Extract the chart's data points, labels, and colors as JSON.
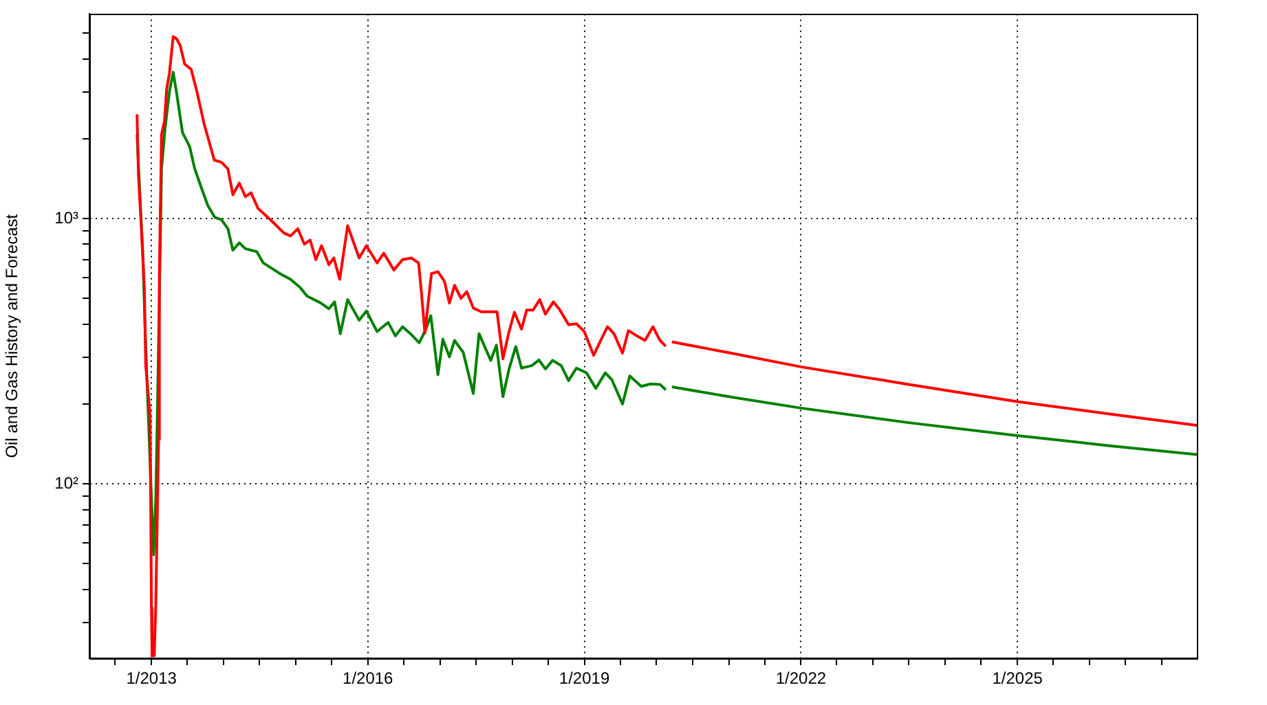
{
  "chart_data": {
    "type": "line",
    "ylabel": "Oil and Gas History and Forecast",
    "log": true,
    "grid": true,
    "marker": "none",
    "xlim": [
      "2012-02-22",
      "2027-06-28"
    ],
    "ylim": [
      22,
      5900
    ],
    "xticks": [
      {
        "value": "2012-07",
        "label": null
      },
      {
        "value": "2013-01",
        "label": "1/2013"
      },
      {
        "value": "2013-07",
        "label": null
      },
      {
        "value": "2014-01",
        "label": null
      },
      {
        "value": "2014-07",
        "label": null
      },
      {
        "value": "2015-01",
        "label": null
      },
      {
        "value": "2015-07",
        "label": null
      },
      {
        "value": "2016-01",
        "label": "1/2016"
      },
      {
        "value": "2016-07",
        "label": null
      },
      {
        "value": "2017-01",
        "label": null
      },
      {
        "value": "2017-07",
        "label": null
      },
      {
        "value": "2018-01",
        "label": null
      },
      {
        "value": "2018-07",
        "label": null
      },
      {
        "value": "2019-01",
        "label": "1/2019"
      },
      {
        "value": "2019-07",
        "label": null
      },
      {
        "value": "2020-01",
        "label": null
      },
      {
        "value": "2020-07",
        "label": null
      },
      {
        "value": "2021-01",
        "label": null
      },
      {
        "value": "2021-07",
        "label": null
      },
      {
        "value": "2022-01",
        "label": "1/2022"
      },
      {
        "value": "2022-07",
        "label": null
      },
      {
        "value": "2023-01",
        "label": null
      },
      {
        "value": "2023-07",
        "label": null
      },
      {
        "value": "2024-01",
        "label": null
      },
      {
        "value": "2024-07",
        "label": null
      },
      {
        "value": "2025-01",
        "label": "1/2025"
      },
      {
        "value": "2025-07",
        "label": null
      },
      {
        "value": "2026-01",
        "label": null
      },
      {
        "value": "2026-07",
        "label": null
      },
      {
        "value": "2027-01",
        "label": null
      }
    ],
    "yticks": [
      {
        "value": 30,
        "label": null
      },
      {
        "value": 40,
        "label": null
      },
      {
        "value": 50,
        "label": null
      },
      {
        "value": 60,
        "label": null
      },
      {
        "value": 70,
        "label": null
      },
      {
        "value": 80,
        "label": null
      },
      {
        "value": 90,
        "label": null
      },
      {
        "value": 100,
        "label": "10²"
      },
      {
        "value": 200,
        "label": null
      },
      {
        "value": 300,
        "label": null
      },
      {
        "value": 400,
        "label": null
      },
      {
        "value": 500,
        "label": null
      },
      {
        "value": 600,
        "label": null
      },
      {
        "value": 700,
        "label": null
      },
      {
        "value": 800,
        "label": null
      },
      {
        "value": 900,
        "label": null
      },
      {
        "value": 1000,
        "label": "10³"
      },
      {
        "value": 2000,
        "label": null
      },
      {
        "value": 3000,
        "label": null
      },
      {
        "value": 4000,
        "label": null
      },
      {
        "value": 5000,
        "label": null
      }
    ],
    "series": [
      {
        "color": "#ff0000",
        "x": [
          "2012-10-20",
          "2012-10-27",
          "2012-11-11",
          "2012-11-26",
          "2012-12-03",
          "2012-12-25",
          "2013-01-01",
          "2013-01-04",
          "2013-01-15",
          "2013-01-23",
          "2013-02-06",
          "2013-02-10",
          "2013-02-21",
          "2013-03-08",
          "2013-03-19",
          "2013-04-02",
          "2013-04-21",
          "2013-05-09",
          "2013-05-27",
          "2013-06-18",
          "2013-07-21",
          "2013-08-19",
          "2013-09-24",
          "2013-11-15",
          "2013-12-21",
          "2014-01-23",
          "2014-02-17",
          "2014-03-22",
          "2014-04-21",
          "2014-05-20",
          "2014-06-25",
          "2014-08-26",
          "2014-11-04",
          "2014-12-06",
          "2015-01-12",
          "2015-02-14",
          "2015-03-15",
          "2015-04-13",
          "2015-05-12",
          "2015-06-18",
          "2015-07-13",
          "2015-08-12",
          "2015-09-21",
          "2015-11-18",
          "2015-12-25",
          "2016-02-17",
          "2016-03-22",
          "2016-05-12",
          "2016-06-25",
          "2016-08-08",
          "2016-09-14",
          "2016-09-28",
          "2016-10-16",
          "2016-10-31",
          "2016-11-18",
          "2016-12-21",
          "2017-01-23",
          "2017-02-17",
          "2017-03-15",
          "2017-04-17",
          "2017-05-16",
          "2017-06-18",
          "2017-07-28",
          "2017-10-16",
          "2017-11-15",
          "2017-12-14",
          "2018-01-12",
          "2018-02-17",
          "2018-03-15",
          "2018-04-17",
          "2018-05-20",
          "2018-06-18",
          "2018-07-28",
          "2018-08-26",
          "2018-10-13",
          "2018-11-22",
          "2019-01-01",
          "2019-02-17",
          "2019-03-19",
          "2019-04-28",
          "2019-05-31",
          "2019-07-13",
          "2019-08-12",
          "2019-09-24",
          "2019-11-04",
          "2019-12-14",
          "2020-01-19",
          "2020-02-17"
        ],
        "values": [
          2470,
          1470,
          915,
          550,
          280,
          180,
          34,
          22.5,
          22.5,
          35,
          147,
          620,
          2070,
          2330,
          3080,
          3530,
          4850,
          4750,
          4480,
          3820,
          3650,
          3010,
          2280,
          1660,
          1630,
          1540,
          1230,
          1360,
          1210,
          1250,
          1090,
          990,
          880,
          860,
          915,
          800,
          830,
          700,
          790,
          670,
          710,
          590,
          940,
          710,
          790,
          680,
          740,
          640,
          700,
          710,
          680,
          530,
          370,
          470,
          620,
          630,
          580,
          480,
          560,
          500,
          530,
          460,
          445,
          445,
          296,
          370,
          443,
          383,
          452,
          452,
          495,
          436,
          485,
          457,
          398,
          401,
          375,
          305,
          340,
          391,
          368,
          311,
          378,
          361,
          347,
          391,
          347,
          330
        ]
      },
      {
        "color": "#008000",
        "x": [
          "2012-10-20",
          "2012-11-04",
          "2012-11-18",
          "2012-11-29",
          "2012-12-14",
          "2013-01-01",
          "2013-01-12",
          "2013-01-23",
          "2013-01-30",
          "2013-02-10",
          "2013-02-21",
          "2013-03-11",
          "2013-04-02",
          "2013-04-21",
          "2013-05-09",
          "2013-06-07",
          "2013-07-13",
          "2013-08-08",
          "2013-09-10",
          "2013-10-13",
          "2013-11-18",
          "2013-12-21",
          "2014-01-23",
          "2014-02-17",
          "2014-03-22",
          "2014-04-21",
          "2014-06-18",
          "2014-07-21",
          "2014-10-13",
          "2014-12-06",
          "2015-01-23",
          "2015-02-28",
          "2015-05-09",
          "2015-06-18",
          "2015-07-17",
          "2015-08-15",
          "2015-09-21",
          "2015-11-18",
          "2015-12-25",
          "2016-02-17",
          "2016-04-13",
          "2016-05-20",
          "2016-06-25",
          "2016-08-04",
          "2016-09-17",
          "2016-10-16",
          "2016-11-15",
          "2016-12-21",
          "2017-01-15",
          "2017-02-17",
          "2017-03-15",
          "2017-04-28",
          "2017-06-18",
          "2017-07-17",
          "2017-09-14",
          "2017-10-13",
          "2017-11-15",
          "2017-12-17",
          "2018-01-19",
          "2018-02-17",
          "2018-04-10",
          "2018-05-16",
          "2018-06-18",
          "2018-07-24",
          "2018-09-06",
          "2018-10-13",
          "2018-11-22",
          "2019-01-12",
          "2019-02-28",
          "2019-04-17",
          "2019-05-20",
          "2019-07-13",
          "2019-08-19",
          "2019-10-16",
          "2019-12-03",
          "2020-01-19",
          "2020-02-17"
        ],
        "values": [
          2070,
          1210,
          750,
          400,
          200,
          88,
          54,
          88,
          166,
          505,
          1540,
          2190,
          3010,
          3560,
          2950,
          2110,
          1870,
          1540,
          1310,
          1120,
          1010,
          990,
          915,
          760,
          810,
          770,
          750,
          680,
          620,
          590,
          550,
          510,
          480,
          457,
          485,
          368,
          495,
          414,
          448,
          375,
          406,
          361,
          391,
          368,
          340,
          375,
          430,
          258,
          351,
          301,
          347,
          313,
          219,
          368,
          292,
          333,
          213,
          273,
          329,
          273,
          279,
          293,
          271,
          292,
          279,
          245,
          273,
          262,
          229,
          262,
          247,
          200,
          255,
          233,
          238,
          237,
          226
        ]
      },
      {
        "color": "#ff0000",
        "x": [
          "2020-03-19",
          "2021-01-01",
          "2022-01-01",
          "2023-07-01",
          "2025-01-01",
          "2026-04-20",
          "2027-06-28"
        ],
        "values": [
          343,
          312,
          276,
          237,
          204,
          183,
          166
        ]
      },
      {
        "color": "#008000",
        "x": [
          "2020-03-19",
          "2021-01-01",
          "2022-01-01",
          "2023-07-01",
          "2025-01-01",
          "2026-04-20",
          "2027-06-28"
        ],
        "values": [
          232,
          213,
          193,
          170,
          152,
          139,
          129
        ]
      }
    ]
  }
}
